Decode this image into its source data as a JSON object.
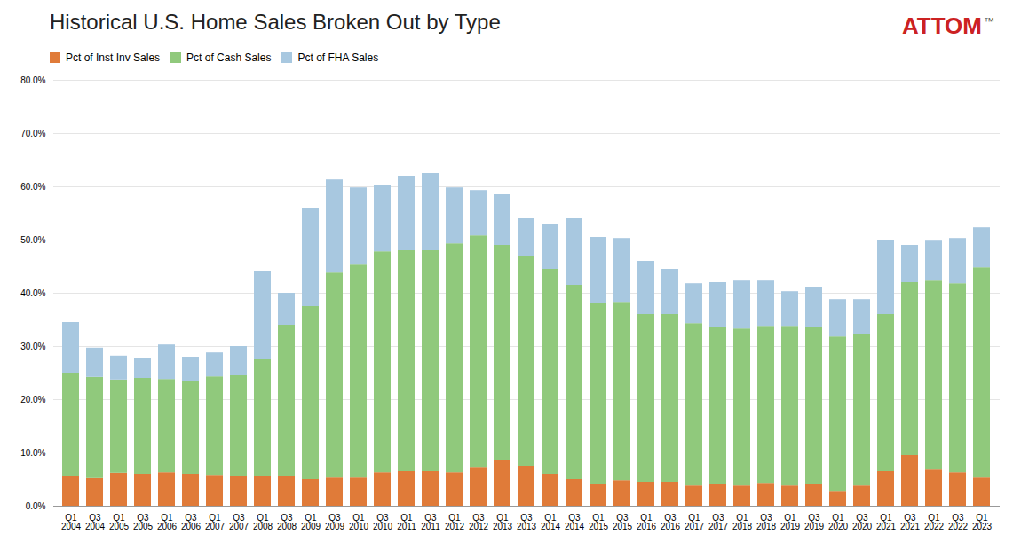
{
  "chart_data": {
    "type": "bar",
    "title": "Historical U.S. Home Sales Broken Out by Type",
    "stacked": true,
    "categories": [
      "Q1\n2004",
      "Q3\n2004",
      "Q1\n2005",
      "Q3\n2005",
      "Q1\n2006",
      "Q3\n2006",
      "Q1\n2007",
      "Q3\n2007",
      "Q1\n2008",
      "Q3\n2008",
      "Q1\n2009",
      "Q3\n2009",
      "Q1\n2010",
      "Q3\n2010",
      "Q1\n2011",
      "Q3\n2011",
      "Q1\n2012",
      "Q3\n2012",
      "Q1\n2013",
      "Q3\n2013",
      "Q1\n2014",
      "Q3\n2014",
      "Q1\n2015",
      "Q3\n2015",
      "Q1\n2016",
      "Q3\n2016",
      "Q1\n2017",
      "Q3\n2017",
      "Q1\n2018",
      "Q3\n2018",
      "Q1\n2019",
      "Q3\n2019",
      "Q1\n2020",
      "Q3\n2020",
      "Q1\n2021",
      "Q3\n2021",
      "Q1\n2022",
      "Q3\n2022",
      "Q1\n2023"
    ],
    "series": [
      {
        "name": "Pct of Inst Inv Sales",
        "color": "#E07B39",
        "values": [
          5.5,
          5.2,
          6.2,
          6.0,
          6.3,
          6.0,
          5.8,
          5.5,
          5.5,
          5.5,
          5.0,
          5.3,
          5.3,
          6.3,
          6.5,
          6.5,
          6.3,
          7.3,
          8.5,
          7.5,
          6.0,
          5.0,
          4.0,
          4.8,
          4.5,
          4.5,
          3.8,
          4.0,
          3.8,
          4.3,
          3.8,
          4.0,
          2.8,
          3.8,
          6.5,
          9.5,
          6.8,
          6.3,
          5.3
        ]
      },
      {
        "name": "Pct of Cash Sales",
        "color": "#90C97C",
        "values": [
          19.5,
          19.0,
          17.5,
          18.0,
          17.5,
          17.5,
          18.5,
          19.0,
          22.0,
          28.5,
          32.5,
          38.5,
          40.0,
          41.5,
          41.5,
          41.5,
          43.0,
          43.5,
          40.5,
          39.5,
          38.5,
          36.5,
          34.0,
          33.5,
          31.5,
          31.5,
          30.5,
          29.5,
          29.5,
          29.5,
          30.0,
          29.5,
          29.0,
          28.5,
          29.5,
          32.5,
          35.5,
          35.5,
          39.5
        ]
      },
      {
        "name": "Pct of FHA Sales",
        "color": "#A8C8E0",
        "values": [
          9.5,
          5.5,
          4.5,
          3.8,
          6.5,
          4.5,
          4.5,
          5.5,
          16.5,
          6.0,
          18.5,
          17.5,
          14.5,
          12.5,
          14.0,
          14.5,
          10.5,
          8.5,
          9.5,
          7.0,
          8.5,
          12.5,
          12.5,
          12.0,
          10.0,
          8.5,
          7.5,
          8.5,
          9.0,
          8.5,
          6.5,
          7.5,
          7.0,
          6.5,
          14.0,
          7.0,
          7.5,
          8.5,
          7.5
        ]
      }
    ],
    "ylim": [
      0,
      80
    ],
    "yticks": [
      {
        "value": 0,
        "label": "0.0%"
      },
      {
        "value": 10,
        "label": "10.0%"
      },
      {
        "value": 20,
        "label": "20.0%"
      },
      {
        "value": 30,
        "label": "30.0%"
      },
      {
        "value": 40,
        "label": "40.0%"
      },
      {
        "value": 50,
        "label": "50.0%"
      },
      {
        "value": 60,
        "label": "60.0%"
      },
      {
        "value": 70,
        "label": "70.0%"
      },
      {
        "value": 80,
        "label": "80.0%"
      }
    ],
    "grid": true,
    "legend": "upper left",
    "annotations": [
      {
        "text": "ATTOM",
        "color": "#CC2222"
      },
      {
        "text": "™",
        "color": "#555555"
      }
    ]
  }
}
